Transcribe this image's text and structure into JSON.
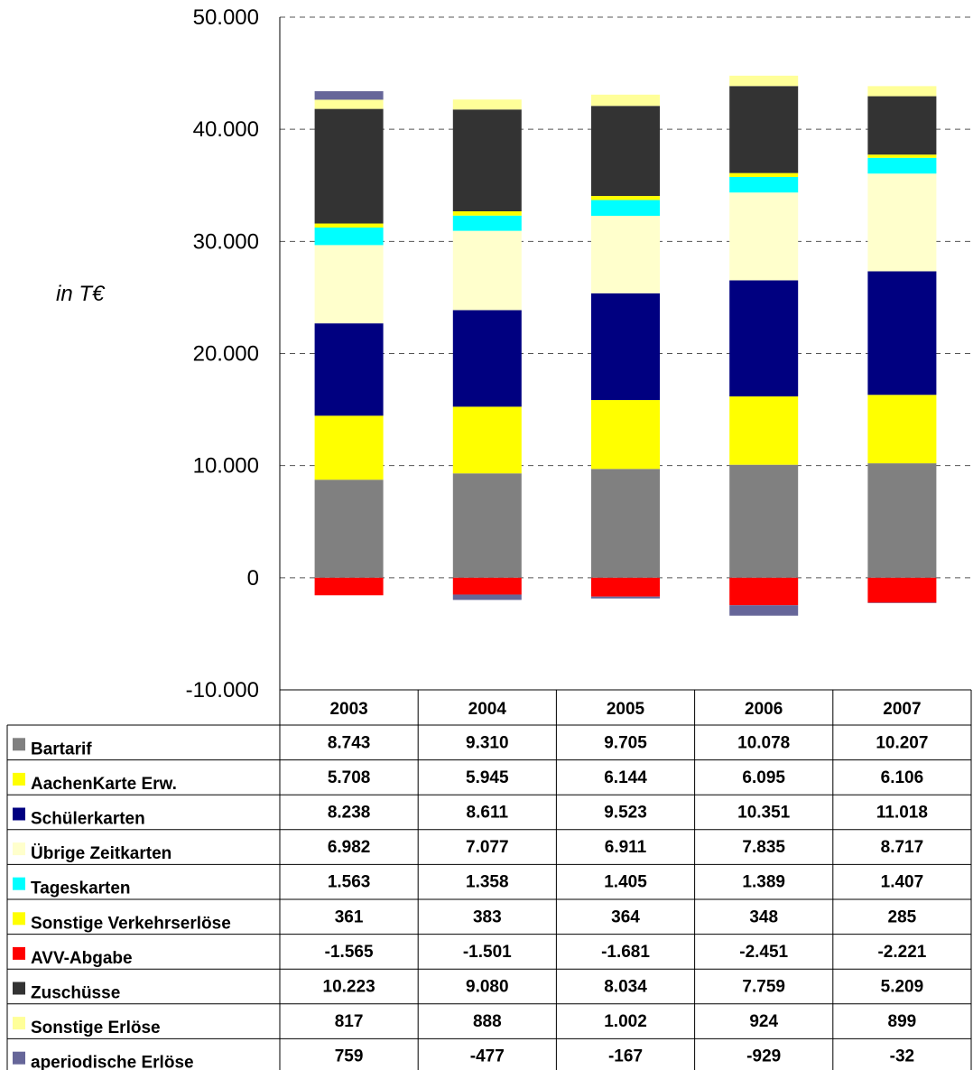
{
  "chart_data": {
    "type": "bar",
    "stacked": true,
    "ylabel": "in T€",
    "ylim": [
      -10000,
      50000
    ],
    "yticks": [
      "-10.000",
      "0",
      "10.000",
      "20.000",
      "30.000",
      "40.000",
      "50.000"
    ],
    "grid": true,
    "categories": [
      "2003",
      "2004",
      "2005",
      "2006",
      "2007"
    ],
    "series": [
      {
        "name": "Bartarif",
        "color": "#808080",
        "values": [
          8743,
          9310,
          9705,
          10078,
          10207
        ],
        "labels": [
          "8.743",
          "9.310",
          "9.705",
          "10.078",
          "10.207"
        ]
      },
      {
        "name": "AachenKarte Erw.",
        "color": "#ffff00",
        "values": [
          5708,
          5945,
          6144,
          6095,
          6106
        ],
        "labels": [
          "5.708",
          "5.945",
          "6.144",
          "6.095",
          "6.106"
        ]
      },
      {
        "name": "Schülerkarten",
        "color": "#000080",
        "values": [
          8238,
          8611,
          9523,
          10351,
          11018
        ],
        "labels": [
          "8.238",
          "8.611",
          "9.523",
          "10.351",
          "11.018"
        ]
      },
      {
        "name": "Übrige Zeitkarten",
        "color": "#ffffcc",
        "values": [
          6982,
          7077,
          6911,
          7835,
          8717
        ],
        "labels": [
          "6.982",
          "7.077",
          "6.911",
          "7.835",
          "8.717"
        ]
      },
      {
        "name": "Tageskarten",
        "color": "#00ffff",
        "values": [
          1563,
          1358,
          1405,
          1389,
          1407
        ],
        "labels": [
          "1.563",
          "1.358",
          "1.405",
          "1.389",
          "1.407"
        ]
      },
      {
        "name": "Sonstige Verkehrserlöse",
        "color": "#ffff00",
        "values": [
          361,
          383,
          364,
          348,
          285
        ],
        "labels": [
          "361",
          "383",
          "364",
          "348",
          "285"
        ]
      },
      {
        "name": "AVV-Abgabe",
        "color": "#ff0000",
        "values": [
          -1565,
          -1501,
          -1681,
          -2451,
          -2221
        ],
        "labels": [
          "-1.565",
          "-1.501",
          "-1.681",
          "-2.451",
          "-2.221"
        ]
      },
      {
        "name": "Zuschüsse",
        "color": "#333333",
        "values": [
          10223,
          9080,
          8034,
          7759,
          5209
        ],
        "labels": [
          "10.223",
          "9.080",
          "8.034",
          "7.759",
          "5.209"
        ]
      },
      {
        "name": "Sonstige Erlöse",
        "color": "#ffff99",
        "values": [
          817,
          888,
          1002,
          924,
          899
        ],
        "labels": [
          "817",
          "888",
          "1.002",
          "924",
          "899"
        ]
      },
      {
        "name": "aperiodische Erlöse",
        "color": "#666699",
        "values": [
          759,
          -477,
          -167,
          -929,
          -32
        ],
        "labels": [
          "759",
          "-477",
          "-167",
          "-929",
          "-32"
        ]
      }
    ]
  }
}
